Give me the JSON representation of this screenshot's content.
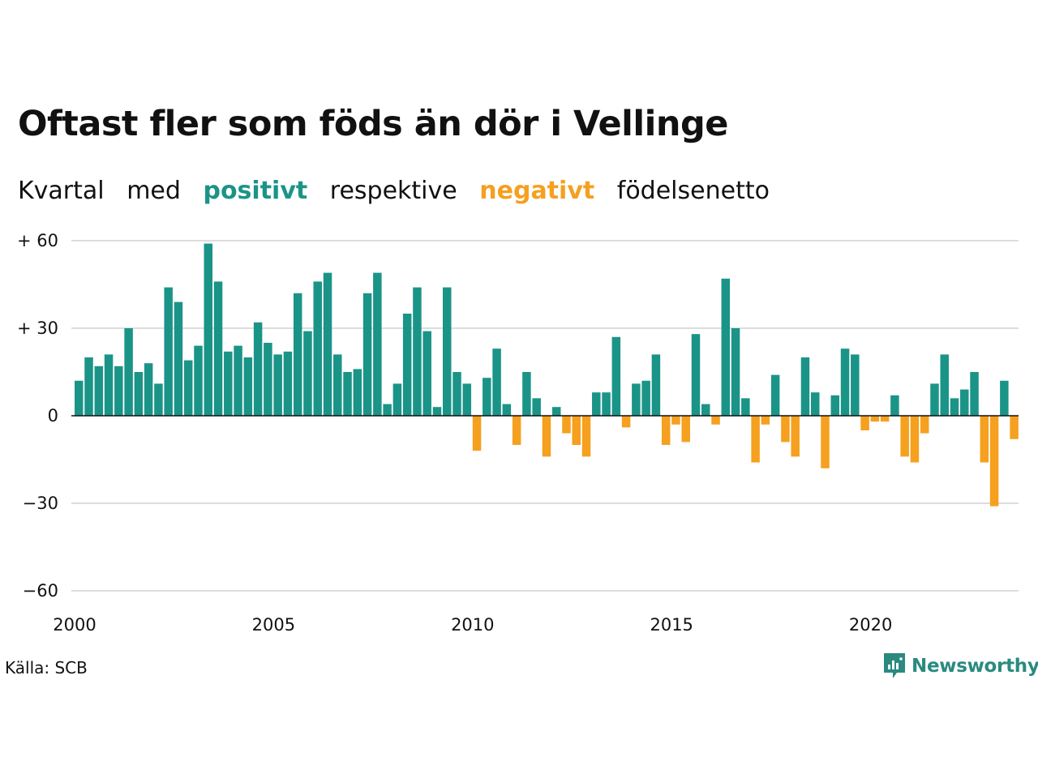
{
  "title": "Oftast fler som föds än dör i Vellinge",
  "subtitle": {
    "w1": "Kvartal",
    "w2": "med",
    "positive": "positivt",
    "w3": "respektive",
    "negative": "negativt",
    "w4": "födelsenetto"
  },
  "source": "Källa: SCB",
  "brand": "Newsworthy",
  "colors": {
    "positive": "#1b9488",
    "negative": "#f5a01f",
    "grid": "#dddddd",
    "zero": "#111111"
  },
  "chart_data": {
    "type": "bar",
    "x_start": "2000 Q1",
    "x_ticks": [
      2000,
      2005,
      2010,
      2015,
      2020
    ],
    "y_ticks": [
      60,
      30,
      0,
      -30,
      -60
    ],
    "y_tick_labels": [
      "+ 60",
      "+ 30",
      "0",
      "−30",
      "−60"
    ],
    "ylim": [
      -60,
      60
    ],
    "grid": true,
    "legend": "none",
    "values": [
      12,
      20,
      17,
      21,
      17,
      30,
      15,
      18,
      11,
      44,
      39,
      19,
      24,
      59,
      46,
      22,
      24,
      20,
      32,
      25,
      21,
      22,
      42,
      29,
      46,
      49,
      21,
      15,
      16,
      42,
      49,
      4,
      11,
      35,
      44,
      29,
      3,
      44,
      15,
      11,
      -12,
      13,
      23,
      4,
      -10,
      15,
      6,
      -14,
      3,
      -6,
      -10,
      -14,
      8,
      8,
      27,
      -4,
      11,
      12,
      21,
      -10,
      -3,
      -9,
      28,
      4,
      -3,
      47,
      30,
      6,
      -16,
      -3,
      14,
      -9,
      -14,
      20,
      8,
      -18,
      7,
      23,
      21,
      -5,
      -2,
      -2,
      7,
      -14,
      -16,
      -6,
      11,
      21,
      6,
      9,
      15,
      -16,
      -31,
      12,
      -8
    ]
  }
}
